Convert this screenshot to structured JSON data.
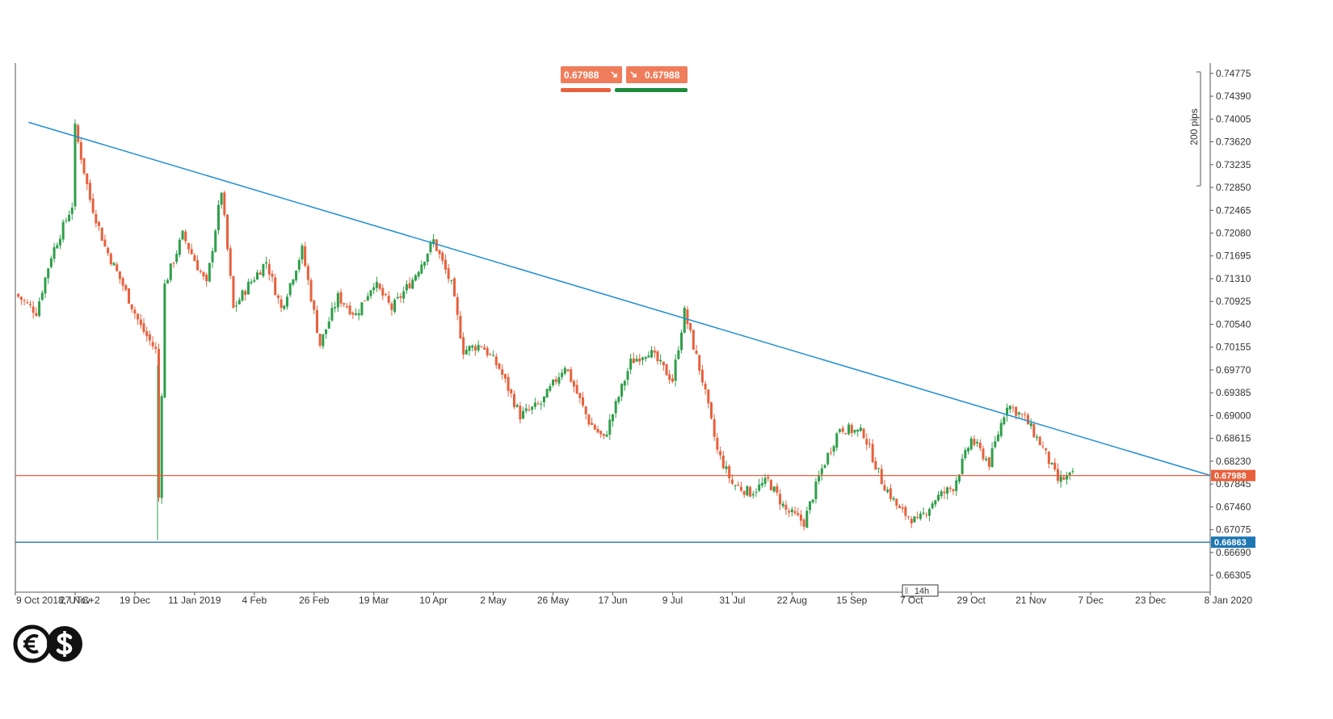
{
  "trade_panel": {
    "sell_price": "0.67988",
    "buy_price": "0.67988",
    "sell_color": "#ef7d5b",
    "buy_color": "#ef7d5b",
    "sell_bar_color": "#e8603c",
    "buy_bar_color": "#1e8a3c"
  },
  "scale_marker": {
    "label": "200 pips"
  },
  "period_marker": {
    "label": "14h"
  },
  "logo": {
    "icon_left": "euro-icon",
    "icon_right": "dollar-icon"
  },
  "chart_data": {
    "type": "candlestick",
    "title": "",
    "xlabel": "",
    "ylabel": "",
    "ylim": [
      0.6602,
      0.7495
    ],
    "x_tick_labels": [
      "9 Oct 2018, UTC+2",
      "27 Nov",
      "19 Dec",
      "11 Jan 2019",
      "4 Feb",
      "26 Feb",
      "19 Mar",
      "10 Apr",
      "2 May",
      "26 May",
      "17 Jun",
      "9 Jul",
      "31 Jul",
      "22 Aug",
      "15 Sep",
      "7 Oct",
      "29 Oct",
      "21 Nov",
      "7 Dec",
      "23 Dec",
      "8 Jan 2020"
    ],
    "y_ticks": [
      "0.74775",
      "0.74390",
      "0.74005",
      "0.73620",
      "0.73235",
      "0.72850",
      "0.72465",
      "0.72080",
      "0.71695",
      "0.71310",
      "0.70925",
      "0.70540",
      "0.70155",
      "0.69770",
      "0.69385",
      "0.69000",
      "0.68615",
      "0.68230",
      "0.67845",
      "0.67460",
      "0.67075",
      "0.66690",
      "0.66305"
    ],
    "current_price": {
      "label": "0.67988",
      "value": 0.67988,
      "color": "#e8603c"
    },
    "support_level": {
      "label": "0.66863",
      "value": 0.66863,
      "color": "#1f77b4"
    },
    "trendline": {
      "start": {
        "x_index": 0.22,
        "value": 0.7395
      },
      "end": {
        "x_index": 20.0,
        "value": 0.6799
      },
      "color": "#1f8fd1"
    },
    "up_color": "#2e9e4a",
    "down_color": "#e8603c",
    "swing_path": [
      [
        0.0,
        0.7105
      ],
      [
        0.35,
        0.7075
      ],
      [
        0.6,
        0.717
      ],
      [
        0.95,
        0.7255
      ],
      [
        1.0,
        0.7385
      ],
      [
        1.25,
        0.7265
      ],
      [
        1.5,
        0.7185
      ],
      [
        1.8,
        0.712
      ],
      [
        2.1,
        0.705
      ],
      [
        2.35,
        0.701
      ],
      [
        2.38,
        0.669
      ],
      [
        2.5,
        0.712
      ],
      [
        2.8,
        0.7205
      ],
      [
        3.2,
        0.712
      ],
      [
        3.45,
        0.728
      ],
      [
        3.65,
        0.708
      ],
      [
        3.9,
        0.712
      ],
      [
        4.2,
        0.716
      ],
      [
        4.45,
        0.708
      ],
      [
        4.8,
        0.718
      ],
      [
        5.1,
        0.702
      ],
      [
        5.4,
        0.71
      ],
      [
        5.7,
        0.707
      ],
      [
        6.0,
        0.7125
      ],
      [
        6.3,
        0.708
      ],
      [
        6.65,
        0.713
      ],
      [
        7.0,
        0.7195
      ],
      [
        7.3,
        0.712
      ],
      [
        7.5,
        0.701
      ],
      [
        7.8,
        0.702
      ],
      [
        8.1,
        0.698
      ],
      [
        8.45,
        0.69
      ],
      [
        8.8,
        0.692
      ],
      [
        9.2,
        0.6985
      ],
      [
        9.6,
        0.689
      ],
      [
        9.85,
        0.686
      ],
      [
        10.3,
        0.699
      ],
      [
        10.6,
        0.701
      ],
      [
        11.0,
        0.696
      ],
      [
        11.2,
        0.7075
      ],
      [
        11.5,
        0.696
      ],
      [
        11.75,
        0.684
      ],
      [
        12.0,
        0.6785
      ],
      [
        12.3,
        0.677
      ],
      [
        12.6,
        0.679
      ],
      [
        12.9,
        0.674
      ],
      [
        13.2,
        0.672
      ],
      [
        13.5,
        0.681
      ],
      [
        13.8,
        0.688
      ],
      [
        14.2,
        0.687
      ],
      [
        14.5,
        0.679
      ],
      [
        14.8,
        0.674
      ],
      [
        15.1,
        0.672
      ],
      [
        15.4,
        0.676
      ],
      [
        15.7,
        0.678
      ],
      [
        16.0,
        0.686
      ],
      [
        16.3,
        0.682
      ],
      [
        16.6,
        0.692
      ],
      [
        16.9,
        0.6895
      ],
      [
        17.2,
        0.6845
      ],
      [
        17.45,
        0.679
      ],
      [
        17.7,
        0.6799
      ]
    ]
  }
}
